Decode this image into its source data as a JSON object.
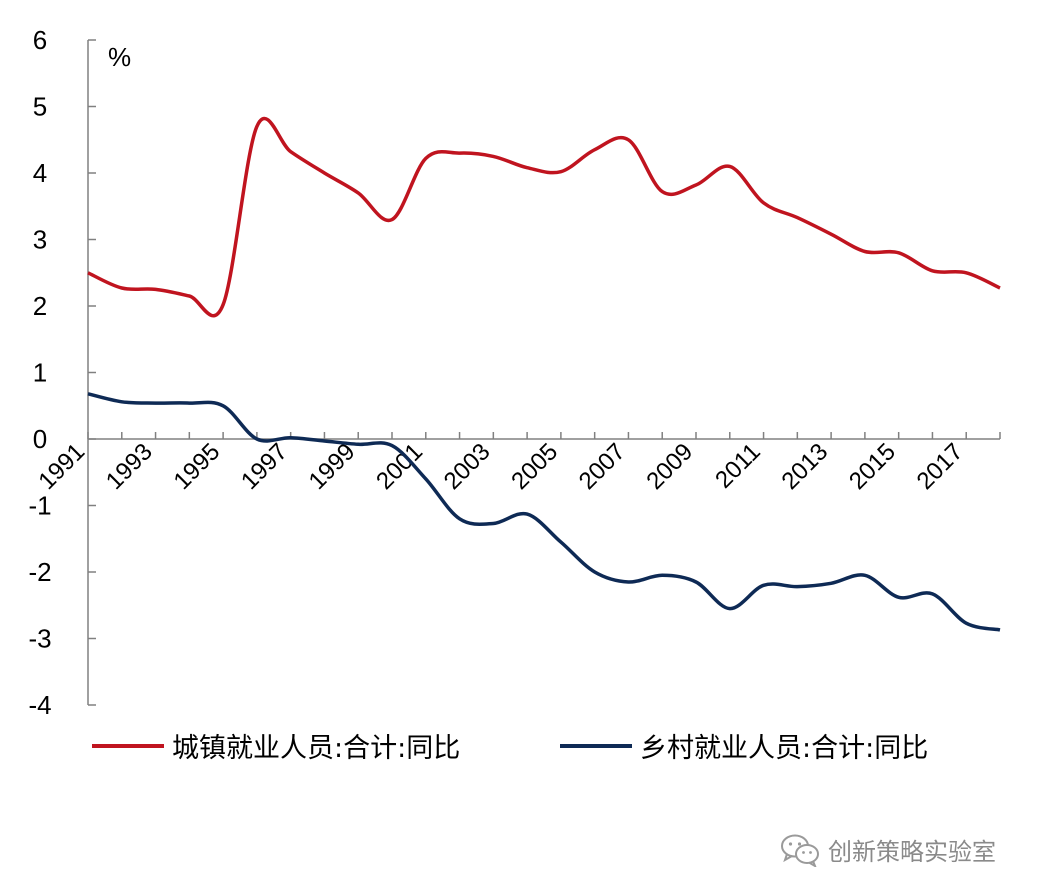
{
  "chart_data": {
    "type": "line",
    "unit_label": "%",
    "ylim": [
      -4,
      6
    ],
    "yticks": [
      6,
      5,
      4,
      3,
      2,
      1,
      0,
      -1,
      -2,
      -3,
      -4
    ],
    "xlim": [
      1991,
      2018
    ],
    "xtick_labels": [
      "1991",
      "1993",
      "1995",
      "1997",
      "1999",
      "2001",
      "2003",
      "2005",
      "2007",
      "2009",
      "2011",
      "2013",
      "2015",
      "2017"
    ],
    "series": [
      {
        "name": "城镇就业人员:合计:同比",
        "color": "#c0141f",
        "x": [
          1991,
          1992,
          1993,
          1994,
          1995,
          1996,
          1997,
          1998,
          1999,
          2000,
          2001,
          2002,
          2003,
          2004,
          2005,
          2006,
          2007,
          2008,
          2009,
          2010,
          2011,
          2012,
          2013,
          2014,
          2015,
          2016,
          2017,
          2018
        ],
        "values": [
          2.5,
          2.27,
          2.25,
          2.15,
          2.02,
          4.7,
          4.32,
          4.0,
          3.7,
          3.3,
          4.22,
          4.3,
          4.25,
          4.08,
          4.02,
          4.35,
          4.5,
          3.72,
          3.82,
          4.1,
          3.55,
          3.33,
          3.08,
          2.82,
          2.8,
          2.53,
          2.5,
          2.27
        ]
      },
      {
        "name": "乡村就业人员:合计:同比",
        "color": "#0e2a55",
        "x": [
          1991,
          1992,
          1993,
          1994,
          1995,
          1996,
          1997,
          1998,
          1999,
          2000,
          2001,
          2002,
          2003,
          2004,
          2005,
          2006,
          2007,
          2008,
          2009,
          2010,
          2011,
          2012,
          2013,
          2014,
          2015,
          2016,
          2017,
          2018
        ],
        "values": [
          0.68,
          0.56,
          0.54,
          0.54,
          0.5,
          0.0,
          0.02,
          -0.03,
          -0.08,
          -0.1,
          -0.6,
          -1.2,
          -1.27,
          -1.13,
          -1.55,
          -2.0,
          -2.15,
          -2.05,
          -2.15,
          -2.55,
          -2.2,
          -2.22,
          -2.17,
          -2.05,
          -2.38,
          -2.33,
          -2.77,
          -2.87
        ]
      }
    ]
  },
  "watermark": {
    "text": "创新策略实验室",
    "icon": "wechat-icon"
  }
}
